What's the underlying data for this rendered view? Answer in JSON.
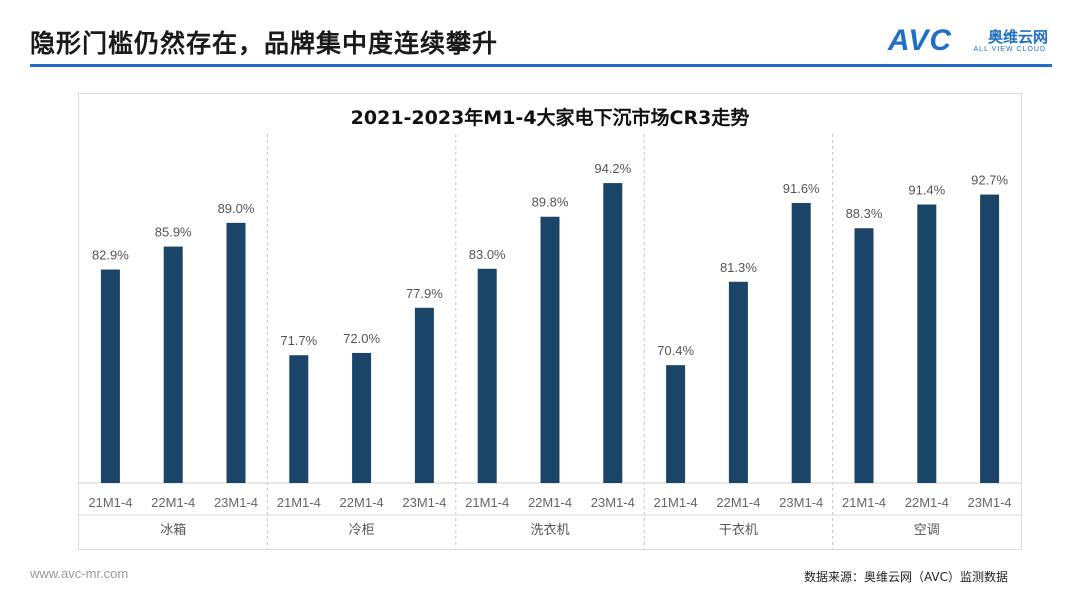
{
  "header": {
    "title": "隐形门槛仍然存在，品牌集中度连续攀升"
  },
  "brand": {
    "logo_text": "AVC",
    "name_cn": "奥维云网",
    "name_en": "ALL VIEW CLOUD",
    "color": "#1f6fc6"
  },
  "chart_data": {
    "type": "bar",
    "title": "2021-2023年M1-4大家电下沉市场CR3走势",
    "groups": [
      "冰箱",
      "冷柜",
      "洗衣机",
      "干衣机",
      "空调"
    ],
    "categories": [
      "21M1-4",
      "22M1-4",
      "23M1-4"
    ],
    "values": [
      [
        82.9,
        85.9,
        89.0
      ],
      [
        71.7,
        72.0,
        77.9
      ],
      [
        83.0,
        89.8,
        94.2
      ],
      [
        70.4,
        81.3,
        91.6
      ],
      [
        88.3,
        91.4,
        92.7
      ]
    ],
    "labels": [
      [
        "82.9%",
        "85.9%",
        "89.0%"
      ],
      [
        "71.7%",
        "72.0%",
        "77.9%"
      ],
      [
        "83.0%",
        "89.8%",
        "94.2%"
      ],
      [
        "70.4%",
        "81.3%",
        "91.6%"
      ],
      [
        "88.3%",
        "91.4%",
        "92.7%"
      ]
    ],
    "ylim": [
      55,
      98
    ],
    "grid": false,
    "legend": "none",
    "bar_color": "#1b4568"
  },
  "footer": {
    "website": "www.avc-mr.com",
    "source": "数据来源：奥维云网（AVC）监测数据"
  }
}
